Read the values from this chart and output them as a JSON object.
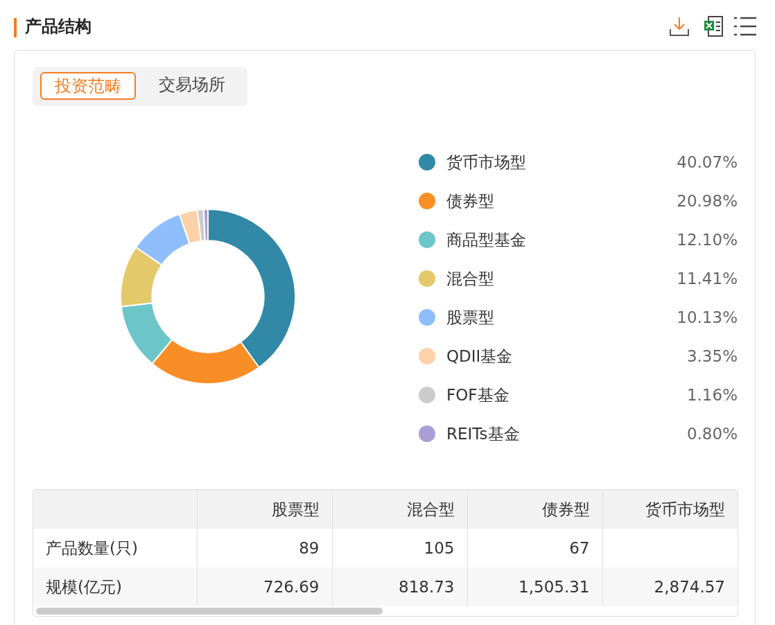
{
  "chart_data": [
    {
      "type": "donut",
      "title": "产品结构",
      "annotations": [
        "投资范畴",
        "交易场所"
      ],
      "legend": "right",
      "categories": [
        "货币市场型",
        "债券型",
        "商品型基金",
        "混合型",
        "股票型",
        "QDII基金",
        "FOF基金",
        "REITs基金"
      ],
      "values": [
        40.07,
        20.98,
        12.1,
        11.41,
        10.13,
        3.35,
        1.16,
        0.8
      ],
      "value_labels": [
        "40.07%",
        "20.98%",
        "12.10%",
        "11.41%",
        "10.13%",
        "3.35%",
        "1.16%",
        "0.80%"
      ],
      "colors": [
        "#3188a7",
        "#f98e26",
        "#6cc6c9",
        "#e4c96a",
        "#8ebefb",
        "#fdd1a9",
        "#cccccc",
        "#a99fd6"
      ]
    },
    {
      "type": "other",
      "data_labels": true,
      "categories": [
        "股票型",
        "混合型",
        "债券型",
        "货币市场型"
      ],
      "series": [
        {
          "name": "产品数量(只)",
          "values": [
            89,
            105,
            67,
            null
          ]
        },
        {
          "name": "规模(亿元)",
          "values": [
            726.69,
            818.73,
            1505.31,
            2874.57
          ],
          "value_labels": [
            "726.69",
            "818.73",
            "1,505.31",
            "2,874.57"
          ]
        }
      ]
    }
  ]
}
